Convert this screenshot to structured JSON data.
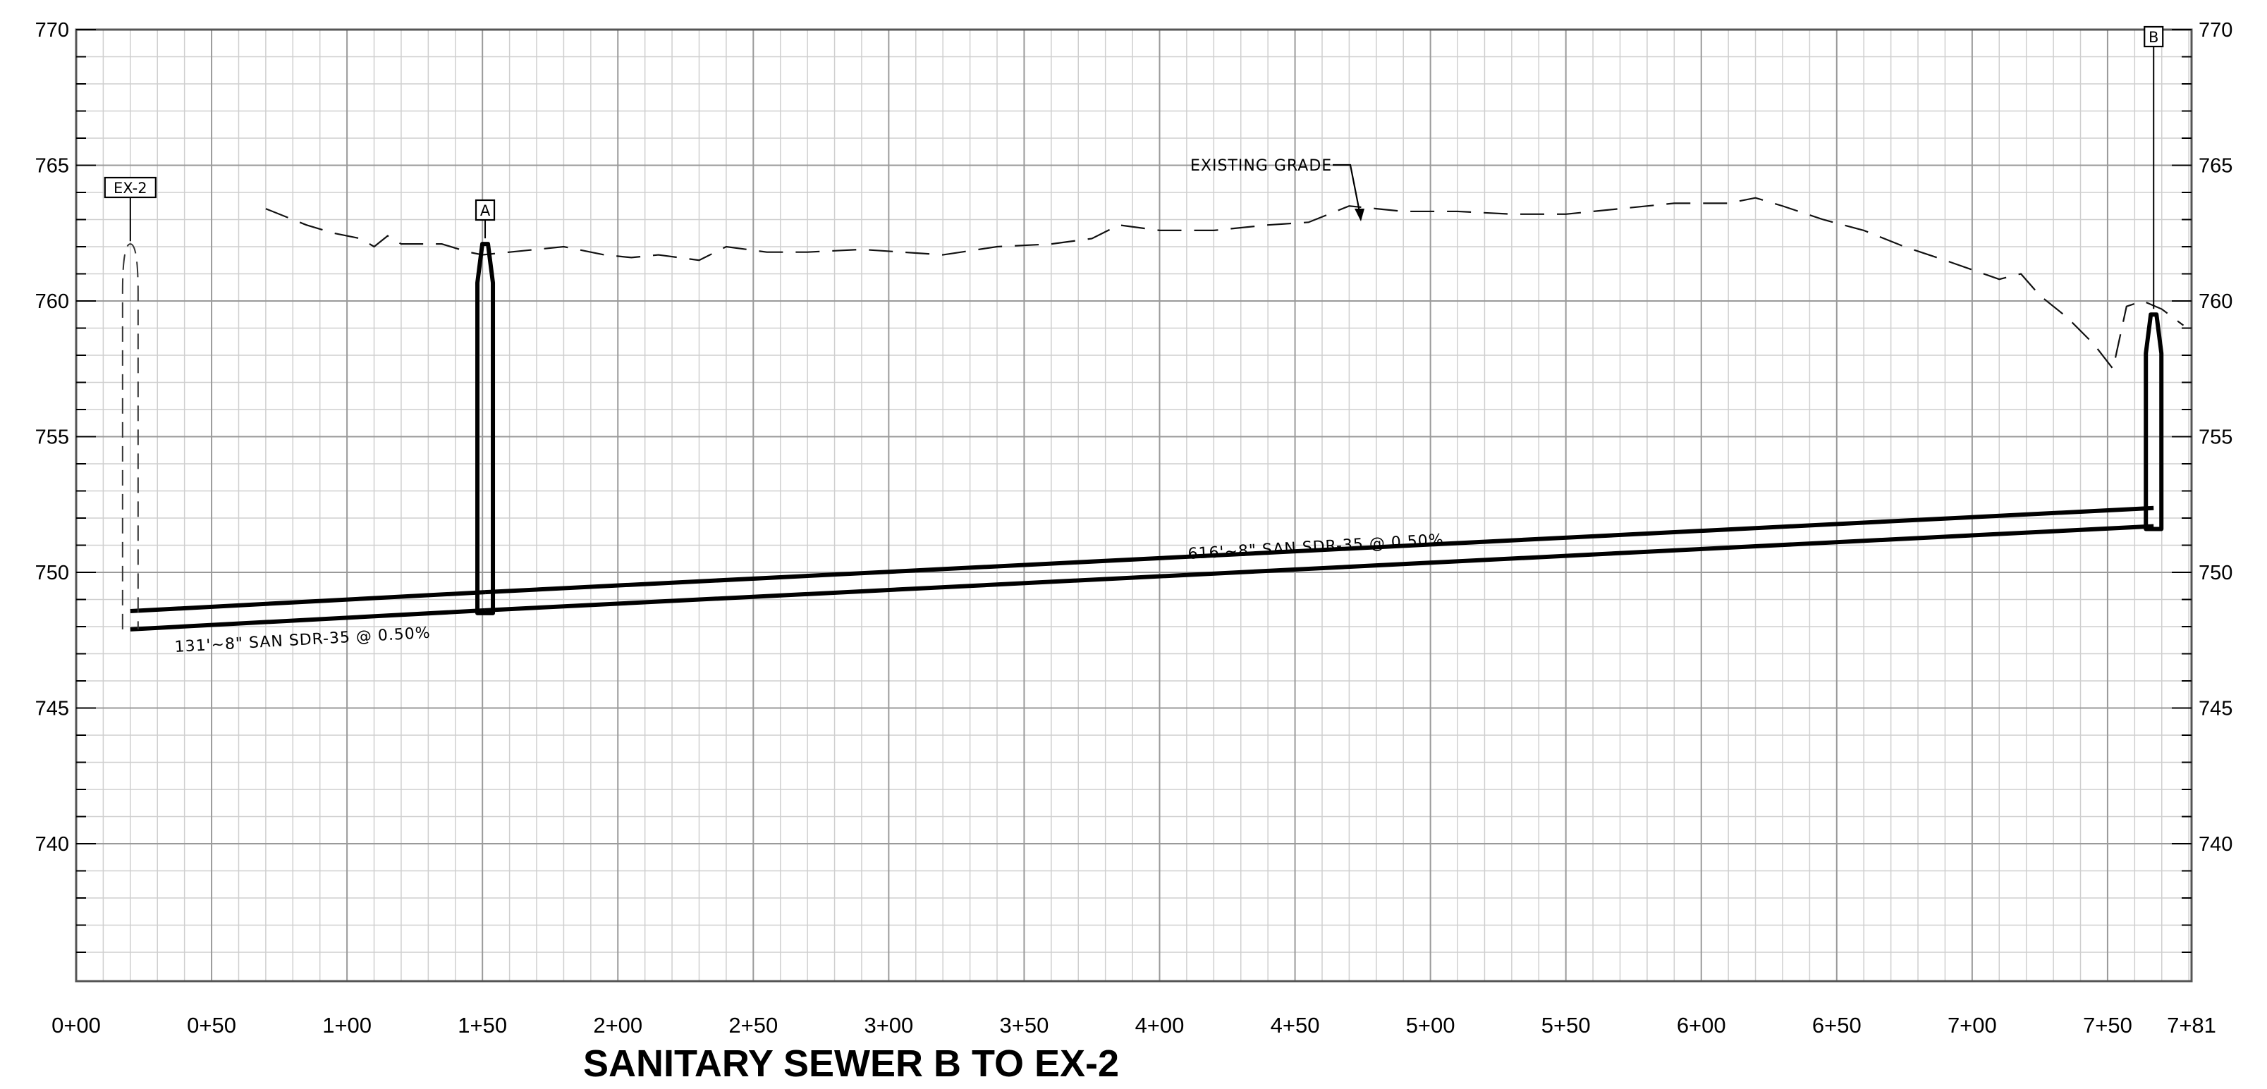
{
  "title": "SANITARY SEWER B TO EX-2",
  "chart_data": {
    "type": "line",
    "title": "SANITARY SEWER B TO EX-2",
    "x_unit": "station (ft)",
    "y_unit": "elevation (ft)",
    "xlim": [
      0,
      781
    ],
    "ylim": [
      735,
      770
    ],
    "grid": true,
    "x_ticks": [
      {
        "x": 0,
        "label": "0+00"
      },
      {
        "x": 50,
        "label": "0+50"
      },
      {
        "x": 100,
        "label": "1+00"
      },
      {
        "x": 150,
        "label": "1+50"
      },
      {
        "x": 200,
        "label": "2+00"
      },
      {
        "x": 250,
        "label": "2+50"
      },
      {
        "x": 300,
        "label": "3+00"
      },
      {
        "x": 350,
        "label": "3+50"
      },
      {
        "x": 400,
        "label": "4+00"
      },
      {
        "x": 450,
        "label": "4+50"
      },
      {
        "x": 500,
        "label": "5+00"
      },
      {
        "x": 550,
        "label": "5+50"
      },
      {
        "x": 600,
        "label": "6+00"
      },
      {
        "x": 650,
        "label": "6+50"
      },
      {
        "x": 700,
        "label": "7+00"
      },
      {
        "x": 750,
        "label": "7+50"
      },
      {
        "x": 781,
        "label": "7+81"
      }
    ],
    "y_ticks": [
      {
        "y": 740,
        "label": "740"
      },
      {
        "y": 745,
        "label": "745"
      },
      {
        "y": 750,
        "label": "750"
      },
      {
        "y": 755,
        "label": "755"
      },
      {
        "y": 760,
        "label": "760"
      },
      {
        "y": 765,
        "label": "765"
      },
      {
        "y": 770,
        "label": "770"
      }
    ],
    "existing_grade": {
      "label": "EXISTING GRADE",
      "points": [
        [
          70,
          763.4
        ],
        [
          85,
          762.8
        ],
        [
          95,
          762.5
        ],
        [
          105,
          762.3
        ],
        [
          110,
          762.0
        ],
        [
          115,
          762.4
        ],
        [
          120,
          762.1
        ],
        [
          135,
          762.1
        ],
        [
          145,
          761.8
        ],
        [
          150,
          761.7
        ],
        [
          160,
          761.8
        ],
        [
          170,
          761.9
        ],
        [
          180,
          762.0
        ],
        [
          195,
          761.7
        ],
        [
          205,
          761.6
        ],
        [
          215,
          761.7
        ],
        [
          230,
          761.5
        ],
        [
          240,
          762.0
        ],
        [
          255,
          761.8
        ],
        [
          270,
          761.8
        ],
        [
          290,
          761.9
        ],
        [
          305,
          761.8
        ],
        [
          320,
          761.7
        ],
        [
          340,
          762.0
        ],
        [
          360,
          762.1
        ],
        [
          375,
          762.3
        ],
        [
          385,
          762.8
        ],
        [
          400,
          762.6
        ],
        [
          420,
          762.6
        ],
        [
          440,
          762.8
        ],
        [
          455,
          762.9
        ],
        [
          470,
          763.5
        ],
        [
          490,
          763.3
        ],
        [
          510,
          763.3
        ],
        [
          530,
          763.2
        ],
        [
          550,
          763.2
        ],
        [
          570,
          763.4
        ],
        [
          590,
          763.6
        ],
        [
          610,
          763.6
        ],
        [
          620,
          763.8
        ],
        [
          630,
          763.5
        ],
        [
          645,
          763.0
        ],
        [
          660,
          762.6
        ],
        [
          675,
          762.0
        ],
        [
          690,
          761.5
        ],
        [
          710,
          760.8
        ],
        [
          718,
          761.0
        ],
        [
          725,
          760.2
        ],
        [
          735,
          759.4
        ],
        [
          745,
          758.4
        ],
        [
          752,
          757.5
        ],
        [
          757,
          759.8
        ],
        [
          763,
          760.0
        ],
        [
          770,
          759.7
        ],
        [
          778,
          759.1
        ]
      ]
    },
    "pipes": [
      {
        "label": "131'~8\" SAN SDR-35 @ 0.50%",
        "from_station": 20,
        "to_station": 151,
        "invert_from": 747.9,
        "invert_to": 748.6
      },
      {
        "label": "616'~8\" SAN SDR-35 @ 0.50%",
        "from_station": 151,
        "to_station": 767,
        "invert_from": 748.6,
        "invert_to": 751.7
      }
    ],
    "structures": [
      {
        "name": "EX-2",
        "station": 20,
        "rim": 762.1,
        "invert": 747.9,
        "existing": true
      },
      {
        "name": "A",
        "station": 151,
        "rim": 762.1,
        "invert": 748.6,
        "existing": false
      },
      {
        "name": "B",
        "station": 767,
        "rim": 759.5,
        "invert": 751.7,
        "existing": false
      }
    ]
  }
}
